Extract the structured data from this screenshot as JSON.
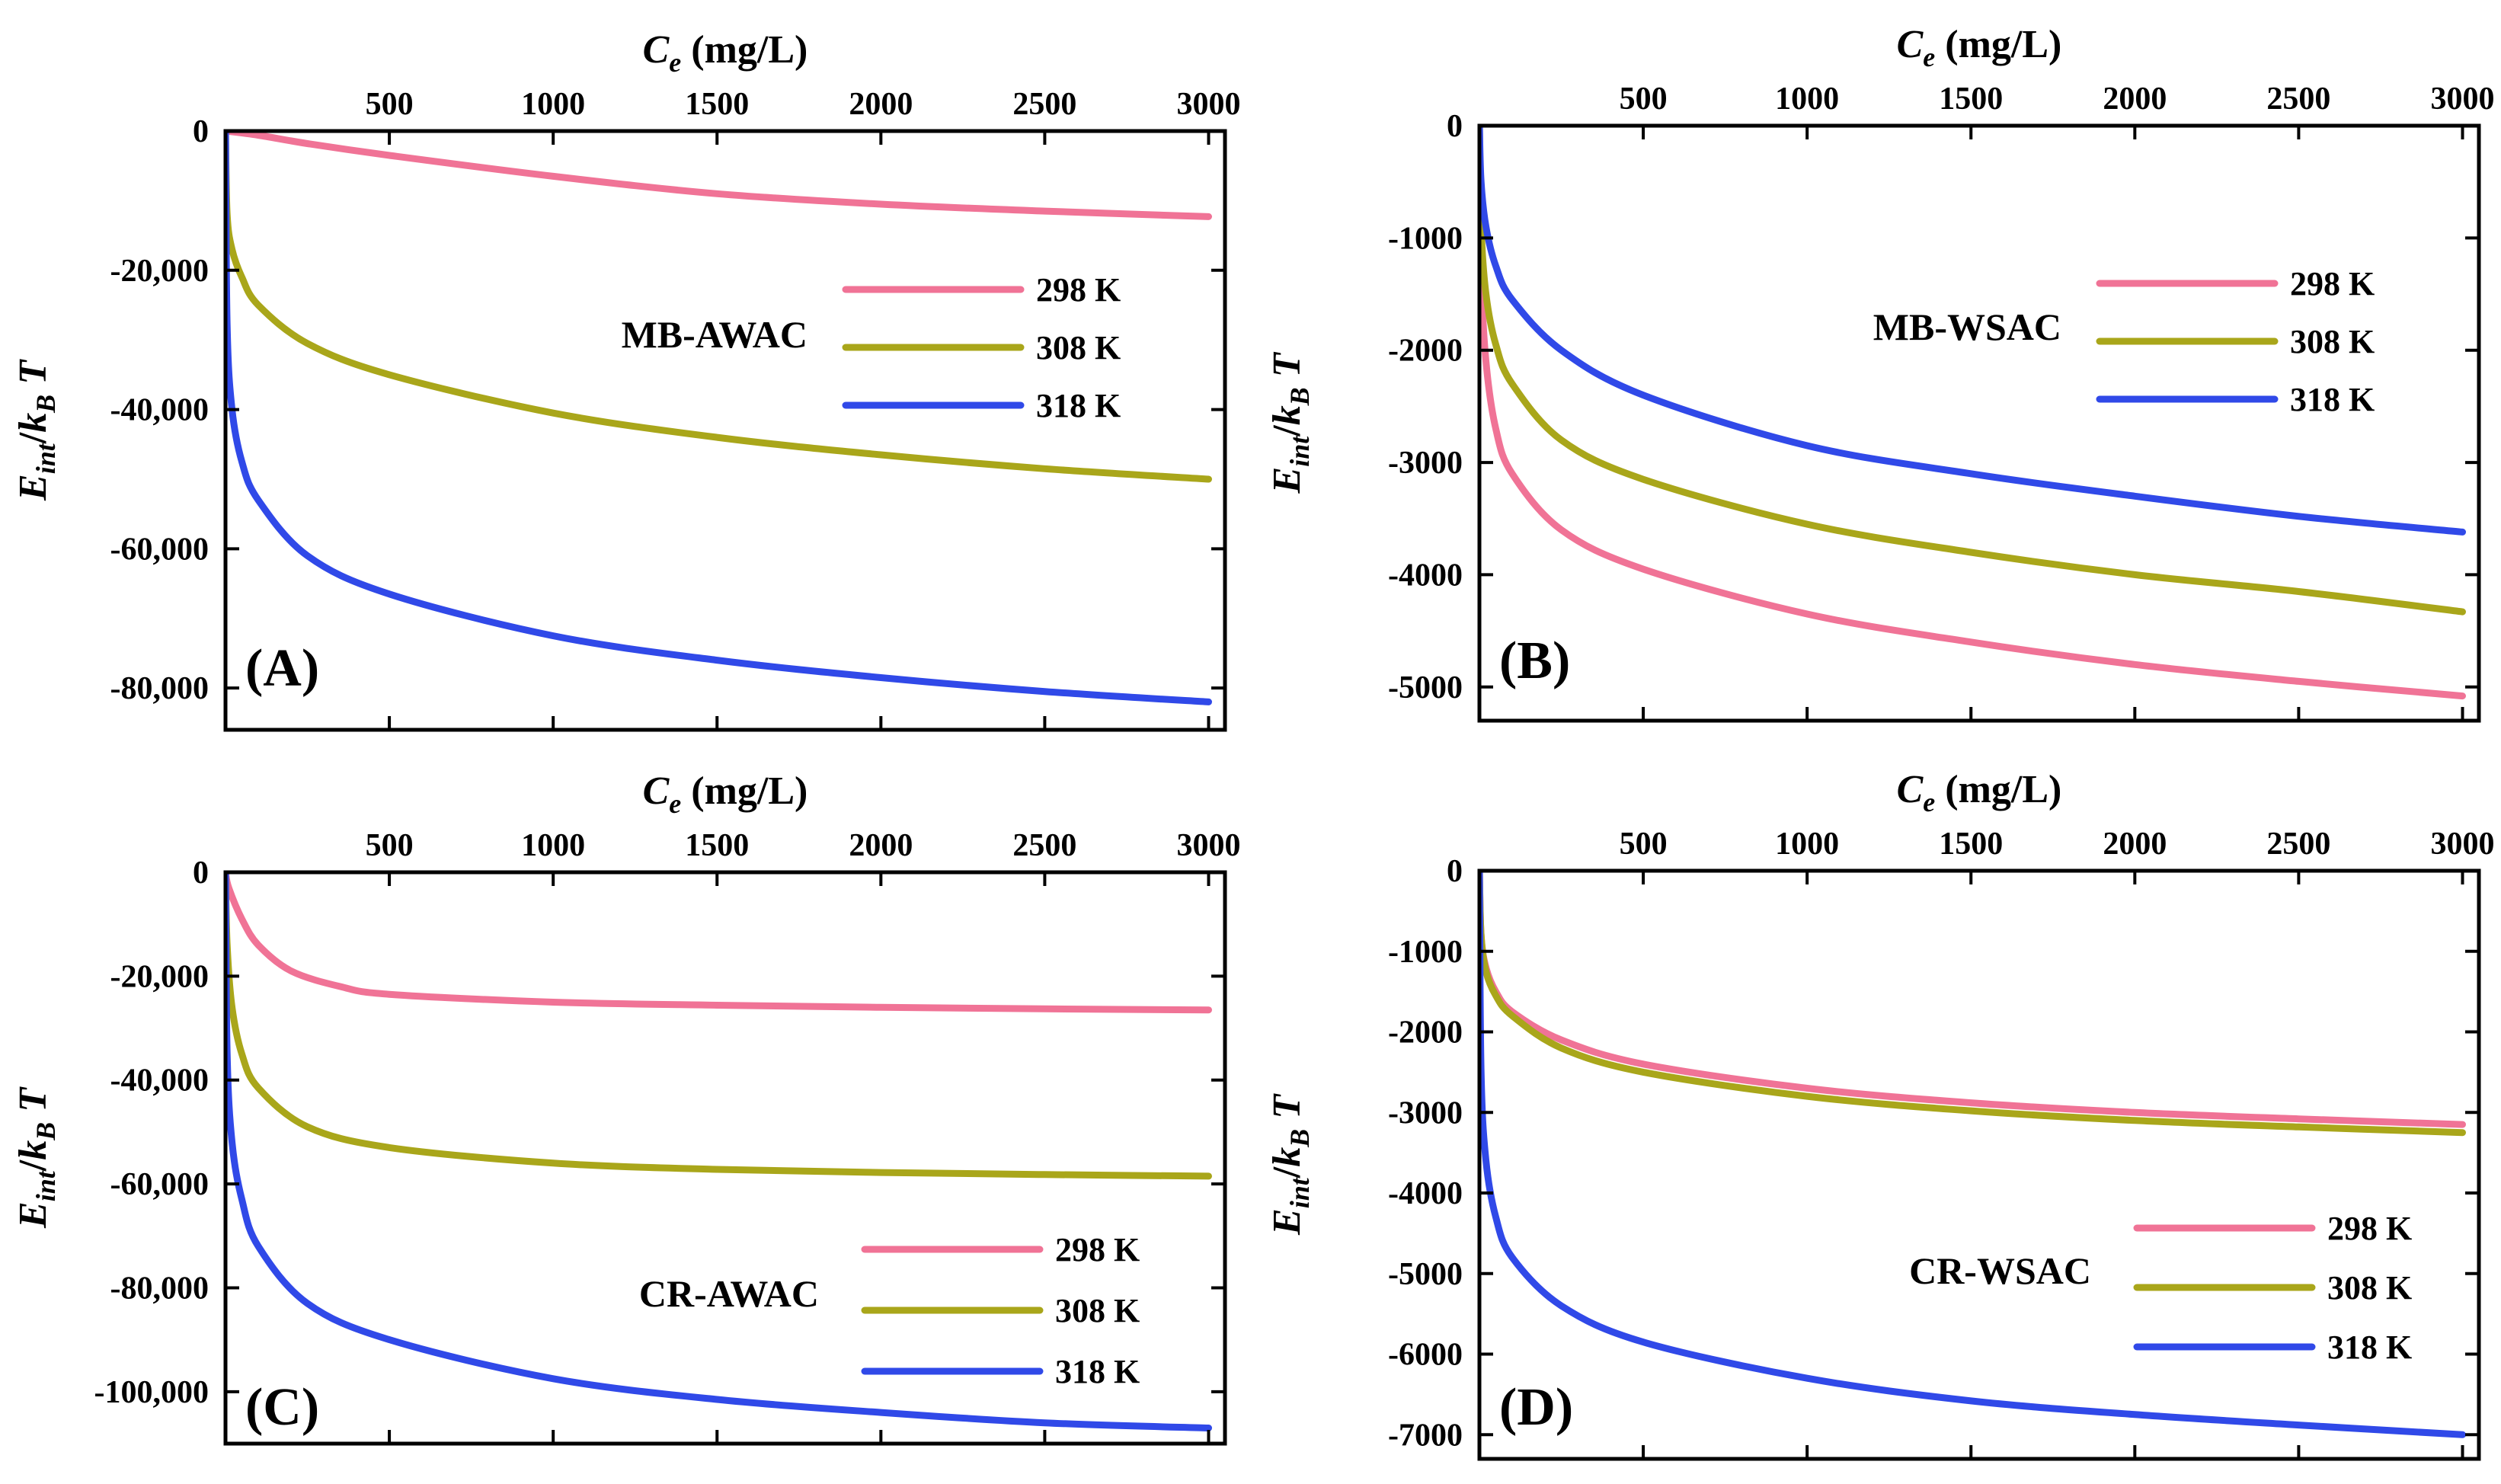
{
  "chart_data": [
    {
      "type": "line",
      "panel": "(A)",
      "sample": "MB-AWAC",
      "xlabel": "C_e (mg/L)",
      "ylabel": "E_int/k_B T",
      "xlim": [
        0,
        3050
      ],
      "ylim": [
        -86000,
        0
      ],
      "xticks": [
        500,
        1000,
        1500,
        2000,
        2500,
        3000
      ],
      "xtick_labels": [
        "500",
        "1000",
        "1500",
        "2000",
        "2500",
        "3000"
      ],
      "yticks": [
        0,
        -20000,
        -40000,
        -60000,
        -80000
      ],
      "ytick_labels": [
        "0",
        "-20,000",
        "-40,000",
        "-60,000",
        "-80,000"
      ],
      "legend_position": "right",
      "series": [
        {
          "name": "298 K",
          "color": "#f07396",
          "x": [
            0,
            100,
            250,
            500,
            1000,
            1500,
            2000,
            2500,
            3000
          ],
          "y": [
            0,
            -600,
            -1800,
            -3500,
            -6500,
            -9000,
            -10500,
            -11500,
            -12300
          ]
        },
        {
          "name": "308 K",
          "color": "#a9a61a",
          "x": [
            0,
            5,
            20,
            50,
            100,
            250,
            500,
            1000,
            1500,
            2000,
            2500,
            3000
          ],
          "y": [
            0,
            -12000,
            -17000,
            -21000,
            -25000,
            -30500,
            -35000,
            -40500,
            -44000,
            -46500,
            -48500,
            -50000
          ]
        },
        {
          "name": "318 K",
          "color": "#3049e8",
          "x": [
            0,
            5,
            20,
            50,
            100,
            250,
            500,
            1000,
            1500,
            2000,
            2500,
            3000
          ],
          "y": [
            0,
            -28000,
            -40000,
            -47500,
            -53000,
            -61000,
            -66500,
            -72500,
            -76000,
            -78500,
            -80500,
            -82000
          ]
        }
      ]
    },
    {
      "type": "line",
      "panel": "(B)",
      "sample": "MB-WSAC",
      "xlabel": "C_e (mg/L)",
      "ylabel": "E_int/k_B T",
      "xlim": [
        0,
        3050
      ],
      "ylim": [
        -5300,
        0
      ],
      "xticks": [
        500,
        1000,
        1500,
        2000,
        2500,
        3000
      ],
      "xtick_labels": [
        "500",
        "1000",
        "1500",
        "2000",
        "2500",
        "3000"
      ],
      "yticks": [
        0,
        -1000,
        -2000,
        -3000,
        -4000,
        -5000
      ],
      "ytick_labels": [
        "0",
        "-1000",
        "-2000",
        "-3000",
        "-4000",
        "-5000"
      ],
      "legend_position": "right",
      "series": [
        {
          "name": "298 K",
          "color": "#f07396",
          "x": [
            0,
            5,
            20,
            50,
            100,
            250,
            500,
            1000,
            1500,
            2000,
            2500,
            3000
          ],
          "y": [
            0,
            -1300,
            -2100,
            -2700,
            -3100,
            -3600,
            -3950,
            -4350,
            -4600,
            -4800,
            -4950,
            -5080
          ]
        },
        {
          "name": "308 K",
          "color": "#a9a61a",
          "x": [
            0,
            5,
            20,
            50,
            100,
            250,
            500,
            1000,
            1500,
            2000,
            2500,
            3000
          ],
          "y": [
            0,
            -900,
            -1500,
            -1950,
            -2300,
            -2800,
            -3150,
            -3550,
            -3800,
            -4000,
            -4150,
            -4330
          ]
        },
        {
          "name": "318 K",
          "color": "#3049e8",
          "x": [
            0,
            5,
            20,
            50,
            100,
            250,
            500,
            1000,
            1500,
            2000,
            2500,
            3000
          ],
          "y": [
            0,
            -500,
            -900,
            -1250,
            -1550,
            -2000,
            -2400,
            -2850,
            -3100,
            -3300,
            -3480,
            -3620
          ]
        }
      ]
    },
    {
      "type": "line",
      "panel": "(C)",
      "sample": "CR-AWAC",
      "xlabel": "C_e (mg/L)",
      "ylabel": "E_int/k_B T",
      "xlim": [
        0,
        3050
      ],
      "ylim": [
        -110000,
        0
      ],
      "xticks": [
        500,
        1000,
        1500,
        2000,
        2500,
        3000
      ],
      "xtick_labels": [
        "500",
        "1000",
        "1500",
        "2000",
        "2500",
        "3000"
      ],
      "yticks": [
        0,
        -20000,
        -40000,
        -60000,
        -80000,
        -100000
      ],
      "ytick_labels": [
        "0",
        "-20,000",
        "-40,000",
        "-60,000",
        "-80,000",
        "-100,000"
      ],
      "legend_position": "bottom-right",
      "series": [
        {
          "name": "298 K",
          "color": "#f07396",
          "x": [
            0,
            10,
            50,
            100,
            200,
            350,
            500,
            1000,
            1500,
            2000,
            2500,
            3000
          ],
          "y": [
            0,
            -3000,
            -9000,
            -14000,
            -19000,
            -22000,
            -23500,
            -25000,
            -25600,
            -26000,
            -26300,
            -26500
          ]
        },
        {
          "name": "308 K",
          "color": "#a9a61a",
          "x": [
            0,
            5,
            20,
            50,
            100,
            250,
            500,
            1000,
            1500,
            2000,
            2500,
            3000
          ],
          "y": [
            0,
            -14000,
            -26000,
            -35000,
            -41500,
            -49000,
            -53000,
            -56000,
            -57200,
            -57800,
            -58200,
            -58500
          ]
        },
        {
          "name": "318 K",
          "color": "#3049e8",
          "x": [
            0,
            5,
            20,
            50,
            100,
            250,
            500,
            1000,
            1500,
            2000,
            2500,
            3000
          ],
          "y": [
            0,
            -35000,
            -52000,
            -63000,
            -72000,
            -83000,
            -90000,
            -97500,
            -101500,
            -104000,
            -106000,
            -107000
          ]
        }
      ]
    },
    {
      "type": "line",
      "panel": "(D)",
      "sample": "CR-WSAC",
      "xlabel": "C_e (mg/L)",
      "ylabel": "E_int/k_B T",
      "xlim": [
        0,
        3050
      ],
      "ylim": [
        -7300,
        0
      ],
      "xticks": [
        500,
        1000,
        1500,
        2000,
        2500,
        3000
      ],
      "xtick_labels": [
        "500",
        "1000",
        "1500",
        "2000",
        "2500",
        "3000"
      ],
      "yticks": [
        0,
        -1000,
        -2000,
        -3000,
        -4000,
        -5000,
        -6000,
        -7000
      ],
      "ytick_labels": [
        "0",
        "-1000",
        "-2000",
        "-3000",
        "-4000",
        "-5000",
        "-6000",
        "-7000"
      ],
      "legend_position": "bottom-right",
      "series": [
        {
          "name": "298 K",
          "color": "#f07396",
          "x": [
            0,
            5,
            20,
            50,
            100,
            250,
            500,
            1000,
            1500,
            2000,
            2500,
            3000
          ],
          "y": [
            0,
            -800,
            -1200,
            -1500,
            -1750,
            -2100,
            -2400,
            -2700,
            -2880,
            -3000,
            -3080,
            -3150
          ]
        },
        {
          "name": "308 K",
          "color": "#a9a61a",
          "x": [
            0,
            5,
            20,
            50,
            100,
            250,
            500,
            1000,
            1500,
            2000,
            2500,
            3000
          ],
          "y": [
            0,
            -800,
            -1250,
            -1550,
            -1800,
            -2200,
            -2500,
            -2800,
            -2980,
            -3100,
            -3180,
            -3250
          ]
        },
        {
          "name": "318 K",
          "color": "#3049e8",
          "x": [
            0,
            5,
            20,
            50,
            100,
            250,
            500,
            1000,
            1500,
            2000,
            2500,
            3000
          ],
          "y": [
            0,
            -2500,
            -3600,
            -4300,
            -4800,
            -5400,
            -5850,
            -6300,
            -6580,
            -6750,
            -6880,
            -7000
          ]
        }
      ]
    }
  ]
}
